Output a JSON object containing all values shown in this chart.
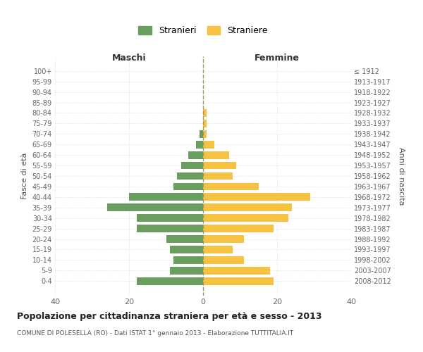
{
  "age_groups": [
    "100+",
    "95-99",
    "90-94",
    "85-89",
    "80-84",
    "75-79",
    "70-74",
    "65-69",
    "60-64",
    "55-59",
    "50-54",
    "45-49",
    "40-44",
    "35-39",
    "30-34",
    "25-29",
    "20-24",
    "15-19",
    "10-14",
    "5-9",
    "0-4"
  ],
  "birth_years": [
    "≤ 1912",
    "1913-1917",
    "1918-1922",
    "1923-1927",
    "1928-1932",
    "1933-1937",
    "1938-1942",
    "1943-1947",
    "1948-1952",
    "1953-1957",
    "1958-1962",
    "1963-1967",
    "1968-1972",
    "1973-1977",
    "1978-1982",
    "1983-1987",
    "1988-1992",
    "1993-1997",
    "1998-2002",
    "2003-2007",
    "2008-2012"
  ],
  "males": [
    0,
    0,
    0,
    0,
    0,
    0,
    1,
    2,
    4,
    6,
    7,
    8,
    20,
    26,
    18,
    18,
    10,
    9,
    8,
    9,
    18
  ],
  "females": [
    0,
    0,
    0,
    0,
    1,
    1,
    1,
    3,
    7,
    9,
    8,
    15,
    29,
    24,
    23,
    19,
    11,
    8,
    11,
    18,
    19
  ],
  "male_color": "#6a9e5e",
  "female_color": "#f5c242",
  "background_color": "#ffffff",
  "grid_color": "#cccccc",
  "title": "Popolazione per cittadinanza straniera per età e sesso - 2013",
  "subtitle": "COMUNE DI POLESELLA (RO) - Dati ISTAT 1° gennaio 2013 - Elaborazione TUTTITALIA.IT",
  "xlabel_left": "Maschi",
  "xlabel_right": "Femmine",
  "ylabel_left": "Fasce di età",
  "ylabel_right": "Anni di nascita",
  "legend_male": "Stranieri",
  "legend_female": "Straniere",
  "xlim": 40,
  "dashed_line_color": "#999966"
}
